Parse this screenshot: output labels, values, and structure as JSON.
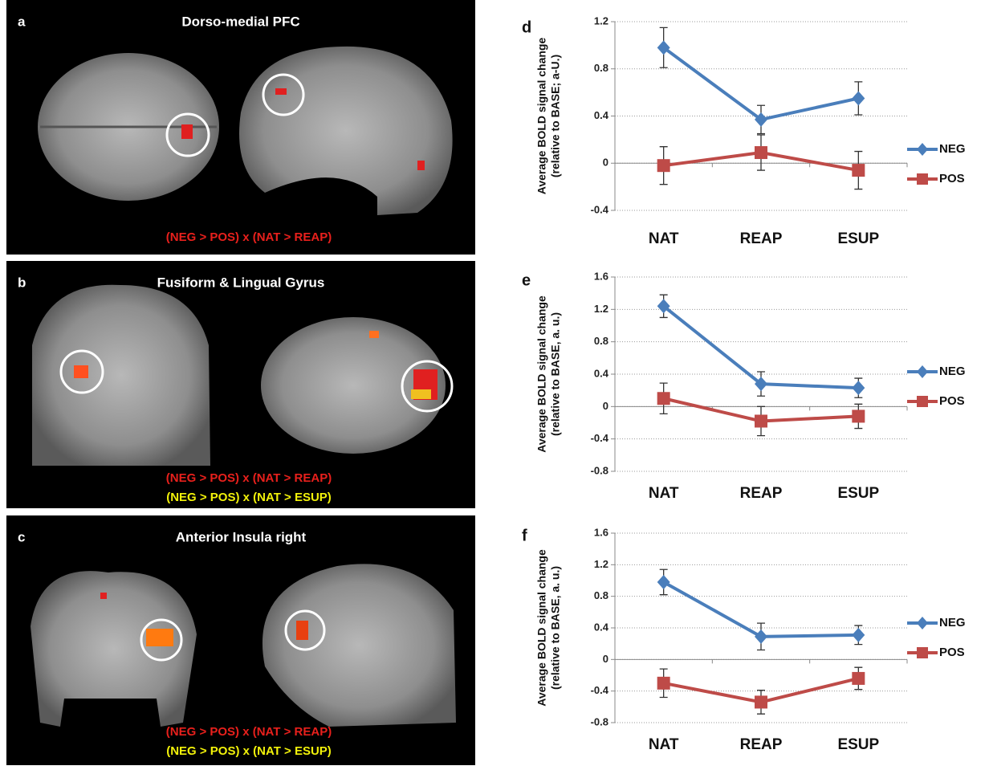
{
  "brain_panels": [
    {
      "label": "a",
      "title": "Dorso-medial PFC",
      "contrasts": [
        "(NEG > POS)  x  (NAT > REAP)"
      ]
    },
    {
      "label": "b",
      "title": "Fusiform & Lingual Gyrus",
      "contrasts": [
        "(NEG > POS)  x  (NAT > REAP)",
        "(NEG > POS) x (NAT > ESUP)"
      ]
    },
    {
      "label": "c",
      "title": "Anterior Insula  right",
      "contrasts": [
        "(NEG > POS)  x  (NAT > REAP)",
        "(NEG > POS)  x  (NAT > ESUP)"
      ]
    }
  ],
  "chart_data": [
    {
      "type": "line",
      "panel": "d",
      "ylabel": [
        "Average BOLD signal change",
        "(relative to BASE; a-U.)"
      ],
      "categories": [
        "NAT",
        "REAP",
        "ESUP"
      ],
      "ylim": [
        -0.4,
        1.2
      ],
      "yticks": [
        -0.4,
        0,
        0.4,
        0.8,
        1.2
      ],
      "grid": true,
      "series": [
        {
          "name": "NEG",
          "color": "#4a7ebb",
          "marker": "diamond",
          "values": [
            0.98,
            0.37,
            0.55
          ],
          "errors": [
            0.17,
            0.12,
            0.14
          ]
        },
        {
          "name": "POS",
          "color": "#be4b48",
          "marker": "square",
          "values": [
            -0.02,
            0.09,
            -0.06
          ],
          "errors": [
            0.16,
            0.15,
            0.16
          ]
        }
      ]
    },
    {
      "type": "line",
      "panel": "e",
      "ylabel": [
        "Average BOLD signal change",
        "(relative to BASE, a. u.)"
      ],
      "categories": [
        "NAT",
        "REAP",
        "ESUP"
      ],
      "ylim": [
        -0.8,
        1.6
      ],
      "yticks": [
        -0.8,
        -0.4,
        0,
        0.4,
        0.8,
        1.2,
        1.6
      ],
      "grid": true,
      "series": [
        {
          "name": "NEG",
          "color": "#4a7ebb",
          "marker": "diamond",
          "values": [
            1.24,
            0.28,
            0.23
          ],
          "errors": [
            0.14,
            0.15,
            0.12
          ]
        },
        {
          "name": "POS",
          "color": "#be4b48",
          "marker": "square",
          "values": [
            0.1,
            -0.18,
            -0.12
          ],
          "errors": [
            0.19,
            0.18,
            0.15
          ]
        }
      ]
    },
    {
      "type": "line",
      "panel": "f",
      "ylabel": [
        "Average BOLD signal change",
        "(relative to BASE, a. u.)"
      ],
      "categories": [
        "NAT",
        "REAP",
        "ESUP"
      ],
      "ylim": [
        -0.8,
        1.6
      ],
      "yticks": [
        -0.8,
        -0.4,
        0,
        0.4,
        0.8,
        1.2,
        1.6
      ],
      "grid": true,
      "series": [
        {
          "name": "NEG",
          "color": "#4a7ebb",
          "marker": "diamond",
          "values": [
            0.98,
            0.29,
            0.31
          ],
          "errors": [
            0.16,
            0.17,
            0.12
          ]
        },
        {
          "name": "POS",
          "color": "#be4b48",
          "marker": "square",
          "values": [
            -0.3,
            -0.54,
            -0.24
          ],
          "errors": [
            0.18,
            0.15,
            0.14
          ]
        }
      ]
    }
  ]
}
